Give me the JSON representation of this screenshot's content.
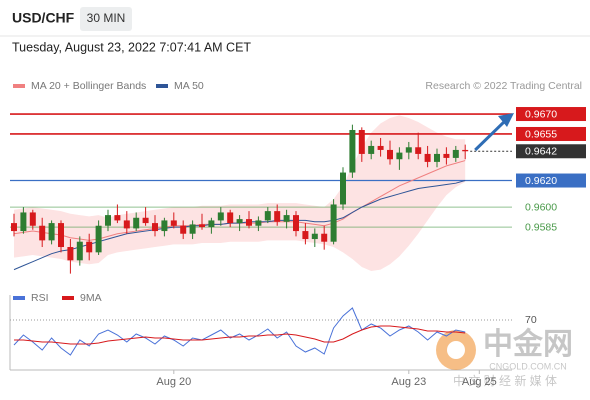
{
  "header": {
    "symbol": "USD/CHF",
    "timeframe": "30 MIN",
    "timestamp": "Tuesday, August 23, 2022 7:07:41 AM CET"
  },
  "chart_data": [
    {
      "type": "candlestick",
      "credit": "Research © 2022 Trading Central",
      "up_color": "#2e7d32",
      "down_color": "#d7191c",
      "open": [
        0.9588,
        0.9582,
        0.9596,
        0.9586,
        0.9575,
        0.9588,
        0.957,
        0.956,
        0.9574,
        0.9566,
        0.9586,
        0.9594,
        0.959,
        0.9584,
        0.9592,
        0.9588,
        0.9582,
        0.959,
        0.9586,
        0.958,
        0.9587,
        0.9585,
        0.959,
        0.9596,
        0.9588,
        0.9591,
        0.9586,
        0.959,
        0.9597,
        0.9589,
        0.9594,
        0.9582,
        0.9576,
        0.958,
        0.9574,
        0.9602,
        0.9626,
        0.9658,
        0.964,
        0.9646,
        0.9643,
        0.9636,
        0.9641,
        0.9645,
        0.964,
        0.9634,
        0.964,
        0.9637,
        0.9643
      ],
      "high": [
        0.9595,
        0.96,
        0.9598,
        0.9592,
        0.959,
        0.959,
        0.9576,
        0.9578,
        0.958,
        0.959,
        0.9598,
        0.9602,
        0.9597,
        0.9596,
        0.96,
        0.9594,
        0.9592,
        0.9596,
        0.959,
        0.959,
        0.9595,
        0.9592,
        0.96,
        0.9598,
        0.9594,
        0.9597,
        0.9593,
        0.96,
        0.9602,
        0.9598,
        0.9597,
        0.9588,
        0.9584,
        0.9586,
        0.9606,
        0.963,
        0.9662,
        0.966,
        0.965,
        0.9652,
        0.965,
        0.9645,
        0.9649,
        0.9656,
        0.9646,
        0.9644,
        0.9645,
        0.9646,
        0.9647
      ],
      "low": [
        0.9578,
        0.958,
        0.9583,
        0.957,
        0.9572,
        0.9566,
        0.955,
        0.9556,
        0.956,
        0.9564,
        0.9582,
        0.9588,
        0.958,
        0.9582,
        0.9586,
        0.9578,
        0.9578,
        0.9584,
        0.9576,
        0.9576,
        0.9583,
        0.958,
        0.9586,
        0.9585,
        0.9582,
        0.9584,
        0.9582,
        0.9588,
        0.9586,
        0.9584,
        0.9578,
        0.9572,
        0.957,
        0.9568,
        0.9572,
        0.9598,
        0.9622,
        0.9634,
        0.9636,
        0.9638,
        0.9632,
        0.9628,
        0.9636,
        0.9636,
        0.963,
        0.963,
        0.9632,
        0.9634,
        0.9636
      ],
      "close": [
        0.9582,
        0.9596,
        0.9586,
        0.9575,
        0.9588,
        0.957,
        0.956,
        0.9574,
        0.9566,
        0.9586,
        0.9594,
        0.959,
        0.9584,
        0.9592,
        0.9588,
        0.9582,
        0.959,
        0.9586,
        0.958,
        0.9587,
        0.9585,
        0.959,
        0.9596,
        0.9588,
        0.9591,
        0.9586,
        0.959,
        0.9597,
        0.9589,
        0.9594,
        0.9582,
        0.9576,
        0.958,
        0.9574,
        0.9602,
        0.9626,
        0.9658,
        0.964,
        0.9646,
        0.9643,
        0.9636,
        0.9641,
        0.9645,
        0.964,
        0.9634,
        0.964,
        0.9637,
        0.9643,
        0.9642
      ],
      "series": [
        {
          "name": "MA 20 + Bollinger Bands",
          "color": "#f08080",
          "band_color": "#fde3e3",
          "values": [
            0.958,
            0.9581,
            0.9582,
            0.9581,
            0.958,
            0.9579,
            0.9577,
            0.9576,
            0.9575,
            0.9576,
            0.9578,
            0.958,
            0.9581,
            0.9582,
            0.9583,
            0.9584,
            0.9585,
            0.9586,
            0.9586,
            0.9586,
            0.9587,
            0.9587,
            0.9587,
            0.9588,
            0.9588,
            0.9588,
            0.9588,
            0.9589,
            0.9589,
            0.9589,
            0.9589,
            0.9588,
            0.9587,
            0.9586,
            0.9588,
            0.9591,
            0.9596,
            0.96,
            0.9604,
            0.9608,
            0.9612,
            0.9616,
            0.9619,
            0.9622,
            0.9625,
            0.9628,
            0.9631,
            0.9633,
            0.9635
          ],
          "upper": [
            0.9598,
            0.9599,
            0.96,
            0.9599,
            0.9598,
            0.9597,
            0.9595,
            0.9594,
            0.9593,
            0.9594,
            0.9592,
            0.9594,
            0.9595,
            0.9596,
            0.9597,
            0.9598,
            0.9599,
            0.96,
            0.96,
            0.96,
            0.9601,
            0.9601,
            0.9601,
            0.9602,
            0.9602,
            0.9602,
            0.9602,
            0.9603,
            0.9603,
            0.9603,
            0.9603,
            0.9602,
            0.9601,
            0.96,
            0.9606,
            0.9616,
            0.9631,
            0.9645,
            0.9656,
            0.9663,
            0.9667,
            0.9669,
            0.9667,
            0.9664,
            0.966,
            0.9656,
            0.9653,
            0.9651,
            0.9651
          ],
          "lower": [
            0.9562,
            0.9563,
            0.9564,
            0.9563,
            0.9562,
            0.9561,
            0.9559,
            0.9558,
            0.9557,
            0.9558,
            0.9564,
            0.9566,
            0.9567,
            0.9568,
            0.9569,
            0.957,
            0.9571,
            0.9572,
            0.9572,
            0.9572,
            0.9573,
            0.9573,
            0.9573,
            0.9574,
            0.9574,
            0.9574,
            0.9574,
            0.9575,
            0.9575,
            0.9575,
            0.9575,
            0.9574,
            0.9573,
            0.9572,
            0.957,
            0.9566,
            0.9561,
            0.9555,
            0.9552,
            0.9553,
            0.9557,
            0.9563,
            0.9571,
            0.958,
            0.959,
            0.96,
            0.9609,
            0.9615,
            0.9619
          ]
        },
        {
          "name": "MA 50",
          "color": "#2f5597",
          "values": [
            0.9553,
            0.9556,
            0.9559,
            0.9562,
            0.9565,
            0.9567,
            0.9568,
            0.957,
            0.9572,
            0.9574,
            0.9576,
            0.9578,
            0.958,
            0.9581,
            0.9582,
            0.9583,
            0.9584,
            0.9585,
            0.9585,
            0.9586,
            0.9586,
            0.9587,
            0.9587,
            0.9588,
            0.9588,
            0.9589,
            0.9589,
            0.9589,
            0.959,
            0.959,
            0.959,
            0.959,
            0.9589,
            0.9589,
            0.959,
            0.9592,
            0.9596,
            0.96,
            0.9603,
            0.9606,
            0.9608,
            0.961,
            0.9612,
            0.9614,
            0.9615,
            0.9616,
            0.9617,
            0.9618,
            0.962
          ]
        }
      ],
      "levels": [
        {
          "value": 0.967,
          "label": "0.9670",
          "color": "#d7191c",
          "box": true,
          "line": "solid"
        },
        {
          "value": 0.9655,
          "label": "0.9655",
          "color": "#d7191c",
          "box": true,
          "line": "solid"
        },
        {
          "value": 0.9642,
          "label": "0.9642",
          "color": "#333333",
          "box": true,
          "line": "dotted"
        },
        {
          "value": 0.962,
          "label": "0.9620",
          "color": "#3a6fc4",
          "box": true,
          "line": "solid"
        },
        {
          "value": 0.96,
          "label": "0.9600",
          "color": "#4a9a4a",
          "box": false,
          "line": "solid"
        },
        {
          "value": 0.9585,
          "label": "0.9585",
          "color": "#4a9a4a",
          "box": false,
          "line": "solid"
        }
      ],
      "xlim": [
        0,
        50
      ],
      "ylim": [
        0.9544,
        0.9681
      ],
      "xticks": [
        {
          "value": 17,
          "label": "Aug 20"
        },
        {
          "value": 42,
          "label": "Aug 23"
        },
        {
          "value": 49.5,
          "label": "Aug 25"
        }
      ]
    },
    {
      "type": "line",
      "series": [
        {
          "name": "RSI",
          "color": "#4a72d8",
          "values": [
            45,
            55,
            48,
            40,
            52,
            42,
            35,
            50,
            44,
            56,
            60,
            55,
            48,
            56,
            52,
            46,
            54,
            50,
            44,
            52,
            50,
            55,
            60,
            52,
            56,
            50,
            55,
            61,
            52,
            58,
            44,
            38,
            42,
            36,
            62,
            74,
            82,
            60,
            66,
            62,
            54,
            60,
            64,
            58,
            50,
            58,
            54,
            60,
            58
          ]
        },
        {
          "name": "9MA",
          "color": "#d7191c",
          "values": [
            50,
            50,
            49,
            48,
            48,
            47,
            46,
            46,
            46,
            47,
            49,
            50,
            51,
            52,
            53,
            52,
            52,
            51,
            50,
            50,
            50,
            51,
            52,
            53,
            53,
            54,
            54,
            55,
            55,
            56,
            55,
            53,
            51,
            48,
            48,
            51,
            56,
            60,
            63,
            64,
            64,
            63,
            62,
            61,
            59,
            59,
            58,
            58,
            57
          ]
        }
      ],
      "xlim": [
        0,
        50
      ],
      "ylim": [
        20,
        90
      ],
      "yticks": [
        70
      ]
    }
  ],
  "watermark": {
    "title": "中金网",
    "site": "CNGOLD.COM.CN",
    "slogan": "中 文 财 经 新 媒 体"
  }
}
